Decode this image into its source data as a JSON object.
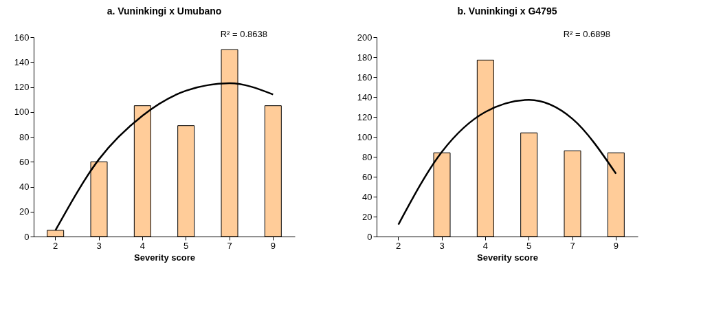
{
  "chart_data": [
    {
      "type": "bar",
      "title": "a. Vuninkingi x Umubano",
      "xlabel": "Severity score",
      "categories": [
        "2",
        "3",
        "4",
        "5",
        "7",
        "9"
      ],
      "ylim": [
        0,
        160
      ],
      "yticks": [
        0,
        20,
        40,
        60,
        80,
        100,
        120,
        140,
        160
      ],
      "grid": false,
      "annotations": [
        "R² = 0.8638"
      ],
      "series": [
        {
          "color": "#ffcc99",
          "values": [
            5,
            60,
            105,
            89,
            150,
            105
          ]
        },
        {
          "type": "line",
          "color": "#000000",
          "values": [
            5,
            62,
            97,
            117,
            123,
            114
          ]
        }
      ]
    },
    {
      "type": "bar",
      "title": "b. Vuninkingi x G4795",
      "xlabel": "Severity score",
      "categories": [
        "2",
        "3",
        "4",
        "5",
        "7",
        "9"
      ],
      "ylim": [
        0,
        200
      ],
      "yticks": [
        0,
        20,
        40,
        60,
        80,
        100,
        120,
        140,
        160,
        180,
        200
      ],
      "grid": false,
      "annotations": [
        "R² = 0.6898"
      ],
      "series": [
        {
          "color": "#ffcc99",
          "values": [
            null,
            84,
            177,
            104,
            86,
            84
          ]
        },
        {
          "type": "line",
          "color": "#000000",
          "values": [
            12,
            85,
            125,
            137,
            118,
            63
          ]
        }
      ]
    }
  ]
}
